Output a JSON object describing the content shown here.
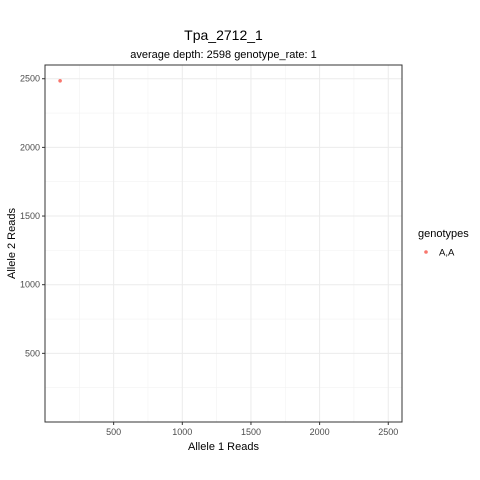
{
  "chart_data": {
    "type": "scatter",
    "title": "Tpa_2712_1",
    "subtitle": "average depth:  2598  genotype_rate:  1",
    "xlabel": "Allele 1 Reads",
    "ylabel": "Allele 2 Reads",
    "xlim": [
      0,
      2600
    ],
    "ylim": [
      0,
      2600
    ],
    "x_ticks": [
      500,
      1000,
      1500,
      2000,
      2500
    ],
    "y_ticks": [
      500,
      1000,
      1500,
      2000,
      2500
    ],
    "grid": true,
    "legend_position": "right",
    "legend": {
      "title": "genotypes",
      "entries": [
        {
          "label": "A,A",
          "color": "#f8766d"
        }
      ]
    },
    "series": [
      {
        "name": "A,A",
        "color": "#f8766d",
        "points": [
          {
            "x": 110,
            "y": 2485
          }
        ]
      }
    ]
  }
}
